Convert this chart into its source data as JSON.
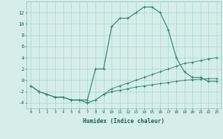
{
  "xlabel": "Humidex (Indice chaleur)",
  "x": [
    0,
    1,
    2,
    3,
    4,
    5,
    6,
    7,
    8,
    9,
    10,
    11,
    12,
    13,
    14,
    15,
    16,
    17,
    18,
    19,
    20,
    21,
    22,
    23
  ],
  "line1": [
    -1,
    -2,
    -2.5,
    -3,
    -3,
    -3.5,
    -3.5,
    -3.5,
    2,
    2,
    9.5,
    11,
    11,
    12,
    13,
    13,
    12,
    9,
    4,
    1.5,
    0.5,
    0.5,
    -0.2,
    -0.2
  ],
  "line2": [
    -1,
    -2,
    -2.5,
    -3,
    -3,
    -3.5,
    -3.5,
    -4,
    -3.5,
    -2.5,
    -1.5,
    -1,
    -0.5,
    0,
    0.5,
    1,
    1.5,
    2,
    2.5,
    3,
    3.2,
    3.5,
    3.8,
    4
  ],
  "line3": [
    -1,
    -2,
    -2.5,
    -3,
    -3,
    -3.5,
    -3.5,
    -4,
    -3.5,
    -2.5,
    -2,
    -1.8,
    -1.5,
    -1.2,
    -1,
    -0.8,
    -0.6,
    -0.4,
    -0.2,
    0,
    0.1,
    0.2,
    0.3,
    0.3
  ],
  "color": "#2e8b74",
  "bg_color": "#d6eeea",
  "grid_color": "#a8d4cc",
  "xlim": [
    -0.5,
    23.5
  ],
  "ylim": [
    -5,
    14
  ],
  "yticks": [
    -4,
    -2,
    0,
    2,
    4,
    6,
    8,
    10,
    12
  ],
  "xticks": [
    0,
    1,
    2,
    3,
    4,
    5,
    6,
    7,
    8,
    9,
    10,
    11,
    12,
    13,
    14,
    15,
    16,
    17,
    18,
    19,
    20,
    21,
    22,
    23
  ]
}
